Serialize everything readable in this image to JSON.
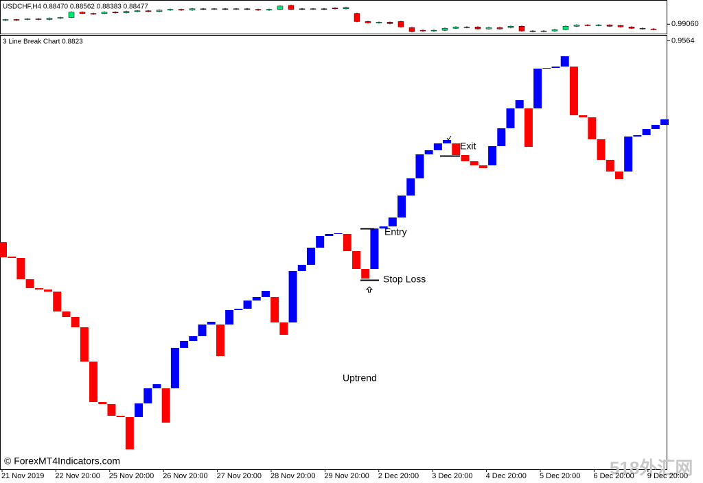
{
  "chart_data": [
    {
      "type": "candlestick",
      "title": "USDCHF,H4 0.88470 0.88562 0.88383 0.88477",
      "up_color": "#00e676",
      "down_color": "#ff0000",
      "open": [
        0.9912,
        0.9913,
        0.9913,
        0.9914,
        0.9913,
        0.9915,
        0.9916,
        0.9924,
        0.9922,
        0.9922,
        0.9924,
        0.9923,
        0.9925,
        0.9926,
        0.9925,
        0.9927,
        0.9928,
        0.9927,
        0.9929,
        0.9928,
        0.9929,
        0.9928,
        0.9929,
        0.9928,
        0.9927,
        0.9928,
        0.9934,
        0.9929,
        0.9928,
        0.9929,
        0.993,
        0.9929,
        0.9922,
        0.991,
        0.9908,
        0.9909,
        0.991,
        0.9901,
        0.9897,
        0.9896,
        0.9897,
        0.99,
        0.9902,
        0.9902,
        0.9899,
        0.9901,
        0.9901,
        0.9903,
        0.9896,
        0.9895,
        0.9896,
        0.9898,
        0.9903,
        0.9905,
        0.9904,
        0.9905,
        0.9904,
        0.9902,
        0.99,
        0.9899
      ],
      "close": [
        0.9913,
        0.9913,
        0.9914,
        0.9913,
        0.9915,
        0.9916,
        0.9924,
        0.9922,
        0.9922,
        0.9924,
        0.9923,
        0.9925,
        0.9926,
        0.9925,
        0.9927,
        0.9928,
        0.9927,
        0.9929,
        0.9928,
        0.9929,
        0.9928,
        0.9929,
        0.9928,
        0.9927,
        0.9928,
        0.9933,
        0.9928,
        0.9928,
        0.9929,
        0.9929,
        0.9929,
        0.9931,
        0.991,
        0.9908,
        0.9909,
        0.9907,
        0.9902,
        0.9895,
        0.9896,
        0.9897,
        0.99,
        0.9902,
        0.9902,
        0.9899,
        0.9901,
        0.9899,
        0.9903,
        0.9896,
        0.9895,
        0.9896,
        0.9898,
        0.9903,
        0.9905,
        0.9904,
        0.9905,
        0.9903,
        0.9902,
        0.99,
        0.9899,
        0.9898
      ],
      "ylim": [
        0.9891,
        0.9941
      ],
      "yticks": [
        {
          "value": 0.9906,
          "label": "0.99060"
        }
      ]
    },
    {
      "type": "line_break",
      "title": "3 Line Break Chart 0.8823",
      "up_color": "#0000ff",
      "down_color": "#ff0000",
      "open": [
        0.94466,
        0.94382,
        0.94374,
        0.9425,
        0.94198,
        0.9419,
        0.94178,
        0.94062,
        0.9403,
        0.9397,
        0.9377,
        0.93534,
        0.93522,
        0.93454,
        0.93446,
        0.93446,
        0.93526,
        0.93614,
        0.93614,
        0.93614,
        0.9385,
        0.9389,
        0.93918,
        0.93986,
        0.93986,
        0.93986,
        0.9407,
        0.94078,
        0.94126,
        0.94146,
        0.94146,
        0.93998,
        0.93998,
        0.94298,
        0.94334,
        0.94434,
        0.94502,
        0.94514,
        0.94514,
        0.94414,
        0.9431,
        0.9431,
        0.94546,
        0.94558,
        0.9461,
        0.94738,
        0.94838,
        0.94978,
        0.95002,
        0.95042,
        0.95042,
        0.94974,
        0.94938,
        0.94914,
        0.94914,
        0.95026,
        0.9513,
        0.95246,
        0.95246,
        0.95246,
        0.95478,
        0.95482,
        0.9549,
        0.9549,
        0.95206,
        0.95194,
        0.95066,
        0.94946,
        0.94878,
        0.94878,
        0.95082,
        0.9509,
        0.95126,
        0.9515
      ],
      "close": [
        0.94378,
        0.94374,
        0.9425,
        0.94198,
        0.9419,
        0.94178,
        0.94062,
        0.9403,
        0.9397,
        0.9377,
        0.93534,
        0.93522,
        0.93454,
        0.93446,
        0.93258,
        0.93526,
        0.93614,
        0.93638,
        0.93414,
        0.9385,
        0.9389,
        0.93918,
        0.93986,
        0.94002,
        0.93802,
        0.9407,
        0.94078,
        0.94126,
        0.94146,
        0.94182,
        0.93998,
        0.93926,
        0.94298,
        0.94334,
        0.94434,
        0.94502,
        0.94514,
        0.94518,
        0.94414,
        0.9431,
        0.94254,
        0.94546,
        0.94558,
        0.9461,
        0.94738,
        0.94838,
        0.94978,
        0.95002,
        0.95042,
        0.95062,
        0.94974,
        0.94938,
        0.94914,
        0.94898,
        0.95026,
        0.9513,
        0.95246,
        0.95294,
        0.95022,
        0.95478,
        0.95482,
        0.9549,
        0.9555,
        0.95206,
        0.95194,
        0.95066,
        0.94946,
        0.94878,
        0.94834,
        0.95082,
        0.9509,
        0.95126,
        0.9515,
        0.95182
      ],
      "ylim": [
        0.93142,
        0.9567
      ],
      "yticks": [
        0.9564
      ],
      "time_labels": [
        "21 Nov 2019",
        "22 Nov 20:00",
        "25 Nov 20:00",
        "26 Nov 20:00",
        "27 Nov 20:00",
        "28 Nov 20:00",
        "29 Nov 20:00",
        "2 Dec 20:00",
        "3 Dec 20:00",
        "4 Dec 20:00",
        "5 Dec 20:00",
        "6 Dec 20:00",
        "9 Dec 20:00"
      ],
      "annotations": [
        "Exit",
        "Entry",
        "Stop Loss",
        "Uptrend"
      ]
    }
  ],
  "copyright": "© ForexMT4Indicators.com",
  "watermark": "518外汇网"
}
